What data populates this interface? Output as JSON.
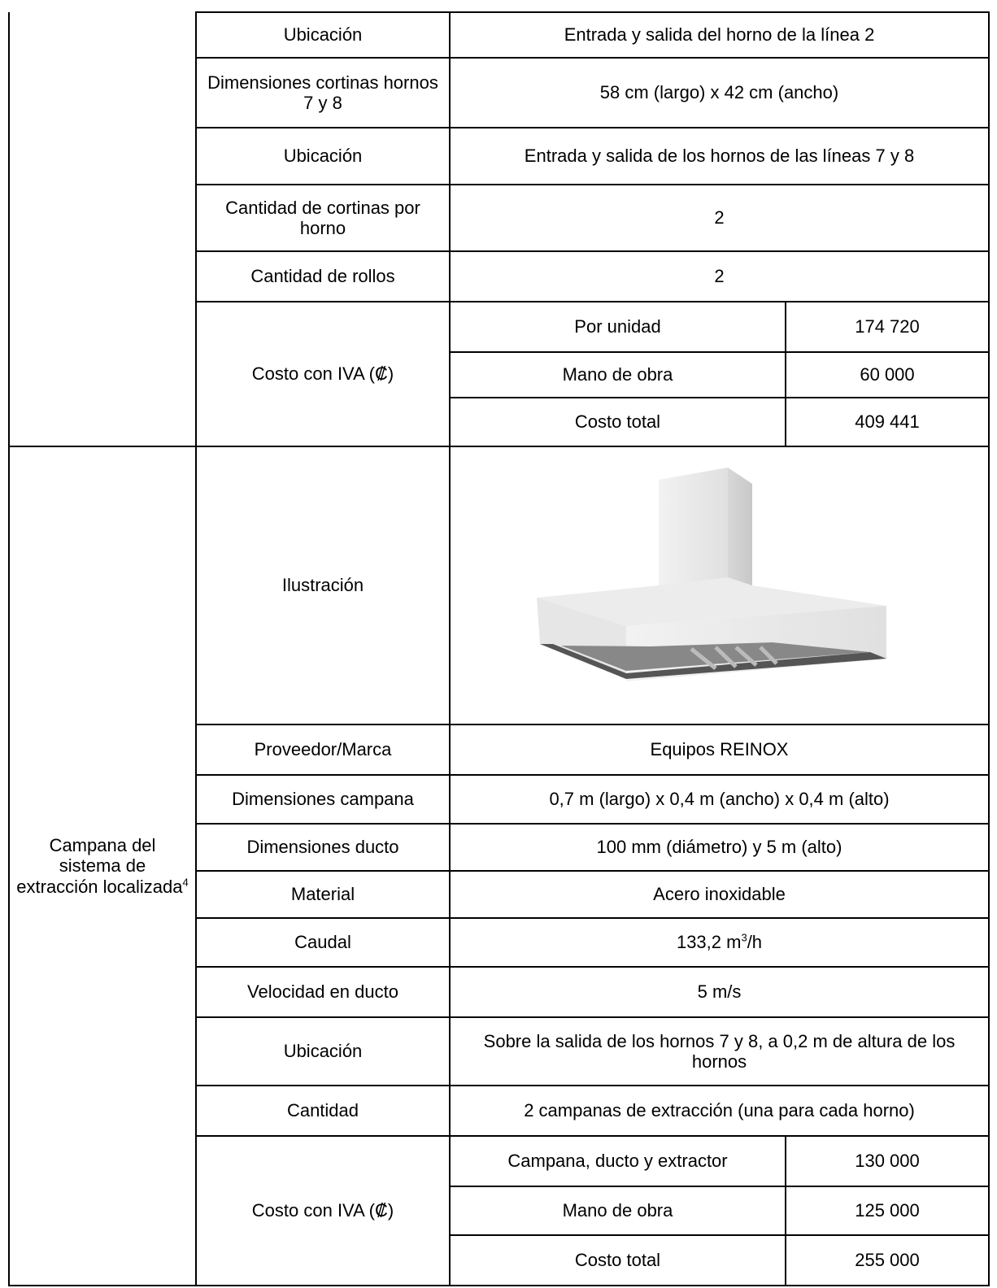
{
  "section_1": {
    "rows": [
      {
        "label": "Ubicación",
        "value": "Entrada y salida del horno de la línea 2"
      },
      {
        "label": "Dimensiones cortinas hornos 7 y 8",
        "value": "58 cm (largo) x 42 cm (ancho)"
      },
      {
        "label": "Ubicación",
        "value": "Entrada y salida de los hornos de las líneas 7 y 8"
      },
      {
        "label": "Cantidad de cortinas por horno",
        "value": "2"
      },
      {
        "label": "Cantidad de rollos",
        "value": "2"
      }
    ],
    "cost": {
      "label": "Costo con IVA (₡)",
      "items": [
        {
          "name": "Por unidad",
          "amount": "174 720"
        },
        {
          "name": "Mano de obra",
          "amount": "60 000"
        },
        {
          "name": "Costo total",
          "amount": "409 441"
        }
      ]
    }
  },
  "section_2": {
    "title": "Campana del sistema de extracción localizada",
    "title_note": "4",
    "illustration_label": "Ilustración",
    "rows": [
      {
        "label": "Proveedor/Marca",
        "value": "Equipos REINOX"
      },
      {
        "label": "Dimensiones campana",
        "value": "0,7 m (largo) x 0,4 m (ancho) x 0,4 m (alto)"
      },
      {
        "label": "Dimensiones ducto",
        "value": "100 mm (diámetro) y 5 m (alto)"
      },
      {
        "label": "Material",
        "value": "Acero inoxidable"
      },
      {
        "label": "Caudal",
        "value": "133,2 m",
        "value_sup": "3",
        "value_suffix": "/h"
      },
      {
        "label": "Velocidad en ducto",
        "value": "5 m/s"
      },
      {
        "label": "Ubicación",
        "value": "Sobre la salida de los hornos 7 y 8, a 0,2 m de altura de los hornos"
      },
      {
        "label": "Cantidad",
        "value": "2 campanas de extracción (una para cada horno)"
      }
    ],
    "cost": {
      "label": "Costo con IVA (₡)",
      "items": [
        {
          "name": "Campana, ducto y extractor",
          "amount": "130 000"
        },
        {
          "name": "Mano de obra",
          "amount": "125 000"
        },
        {
          "name": "Costo total",
          "amount": "255 000"
        }
      ]
    }
  }
}
